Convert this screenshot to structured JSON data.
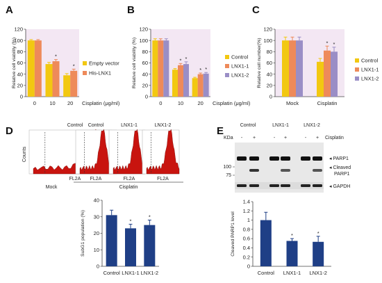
{
  "panels": {
    "A": "A",
    "B": "B",
    "C": "C",
    "D": "D",
    "E": "E"
  },
  "chart_data": [
    {
      "id": "A",
      "type": "bar",
      "ylabel": "Relative cell viability (%)",
      "xlabel": "Cisplatin (μg/ml)",
      "categories": [
        "0",
        "10",
        "20"
      ],
      "ylim": [
        0,
        120
      ],
      "yticks": [
        0,
        20,
        40,
        60,
        80,
        100,
        120
      ],
      "series": [
        {
          "name": "Empty vector",
          "color": "#f2c811",
          "values": [
            100,
            58,
            38
          ],
          "errors": [
            1.5,
            3,
            3
          ]
        },
        {
          "name": "His-LNX1",
          "color": "#ee8a5a",
          "values": [
            100,
            63,
            46
          ],
          "errors": [
            1.5,
            3,
            3
          ]
        }
      ],
      "stars": [
        "",
        "*",
        "*"
      ]
    },
    {
      "id": "B",
      "type": "bar",
      "ylabel": "Relative cell viability (%)",
      "xlabel": "Cisplatin (μg/ml)",
      "categories": [
        "0",
        "10",
        "20"
      ],
      "ylim": [
        0,
        120
      ],
      "yticks": [
        0,
        20,
        40,
        60,
        80,
        100,
        120
      ],
      "series": [
        {
          "name": "Control",
          "color": "#f2c811",
          "values": [
            100,
            48,
            33
          ],
          "errors": [
            3,
            2,
            1.5
          ]
        },
        {
          "name": "LNX1-1",
          "color": "#ee8a5a",
          "values": [
            100,
            56,
            40
          ],
          "errors": [
            3,
            3,
            2
          ]
        },
        {
          "name": "LNX1-2",
          "color": "#9a8ec6",
          "values": [
            100,
            58,
            41
          ],
          "errors": [
            3,
            4,
            2
          ]
        }
      ],
      "stars": [
        [
          "",
          "",
          ""
        ],
        [
          "",
          "*",
          "*"
        ],
        [
          "",
          "*",
          "*"
        ]
      ]
    },
    {
      "id": "C",
      "type": "bar",
      "ylabel": "Relative cell number(%)",
      "categories": [
        "Mock",
        "Cisplatin"
      ],
      "ylim": [
        0,
        120
      ],
      "yticks": [
        0,
        20,
        40,
        60,
        80,
        100,
        120
      ],
      "series": [
        {
          "name": "Control",
          "color": "#f2c811",
          "values": [
            100,
            62
          ],
          "errors": [
            6,
            6
          ]
        },
        {
          "name": "LNX1-1",
          "color": "#ee8a5a",
          "values": [
            100,
            82
          ],
          "errors": [
            6,
            8
          ]
        },
        {
          "name": "LNX1-2",
          "color": "#9a8ec6",
          "values": [
            100,
            80
          ],
          "errors": [
            6,
            8
          ]
        }
      ],
      "stars": [
        [
          "",
          ""
        ],
        [
          "",
          "*"
        ],
        [
          "",
          "*"
        ]
      ]
    },
    {
      "id": "D",
      "type": "bar",
      "ylabel": "SubG1 population (%)",
      "categories": [
        "Control",
        "LNX1-1",
        "LNX1-2"
      ],
      "ylim": [
        0,
        40
      ],
      "yticks": [
        0,
        10,
        20,
        30,
        40
      ],
      "series": [
        {
          "name": "",
          "color": "#1f3f86",
          "values": [
            31,
            23,
            25
          ],
          "errors": [
            3,
            2.5,
            3
          ]
        }
      ],
      "stars": [
        "",
        "*",
        "*"
      ]
    },
    {
      "id": "E",
      "type": "bar",
      "ylabel": "Cleaved PARP1 level",
      "categories": [
        "Control",
        "LNX1-1",
        "LNX1-2"
      ],
      "ylim": [
        0,
        1.4
      ],
      "yticks": [
        "0",
        "0.2",
        "0.4",
        "0.6",
        "0.8",
        "1",
        "1.2",
        "1.4"
      ],
      "series": [
        {
          "name": "",
          "color": "#1f3f86",
          "values": [
            1.0,
            0.55,
            0.53
          ],
          "errors": [
            0.17,
            0.05,
            0.12
          ]
        }
      ],
      "stars": [
        "",
        "*",
        "*"
      ]
    }
  ],
  "flow": {
    "titles": [
      "Control",
      "Control",
      "LNX1-1",
      "LNX1-2"
    ],
    "ylabel": "Counts",
    "xlabel": "FL2A",
    "group_mock": "Mock",
    "group_cisplatin": "Cisplatin",
    "fill_color": "#c8140f"
  },
  "blot": {
    "lane_groups": [
      "Control",
      "LNX1-1",
      "LNX1-2"
    ],
    "kda_label": "KDa",
    "cisplatin_label": "Cisplatin",
    "signs": [
      "-",
      "+",
      "-",
      "+",
      "-",
      "+"
    ],
    "mw_markers": [
      "100",
      "75"
    ],
    "labels": {
      "parp1": "PARP1",
      "cleaved1": "Cleaved",
      "cleaved2": "PARP1",
      "gapdh": "GAPDH"
    }
  }
}
